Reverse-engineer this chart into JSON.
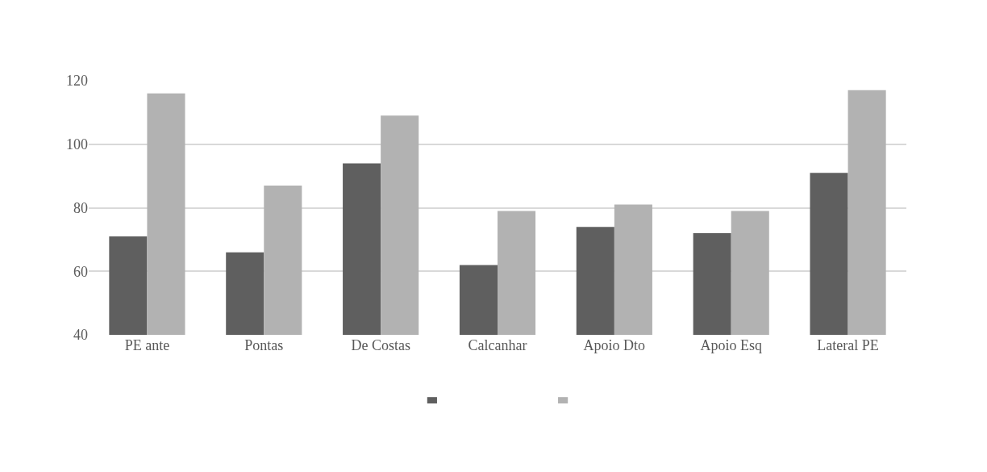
{
  "chart_data": {
    "type": "bar",
    "categories": [
      "PE ante",
      "Pontas",
      "De Costas",
      "Calcanhar",
      "Apoio Dto",
      "Apoio Esq",
      "Lateral PE"
    ],
    "series": [
      {
        "color": "#5f5f5f",
        "values": [
          71,
          66,
          94,
          62,
          74,
          72,
          91
        ]
      },
      {
        "color": "#b2b2b2",
        "values": [
          116,
          87,
          109,
          79,
          81,
          79,
          117
        ]
      }
    ],
    "ylim": [
      40,
      120
    ],
    "yticks": [
      40,
      60,
      80,
      100,
      120
    ],
    "grid": "y"
  }
}
